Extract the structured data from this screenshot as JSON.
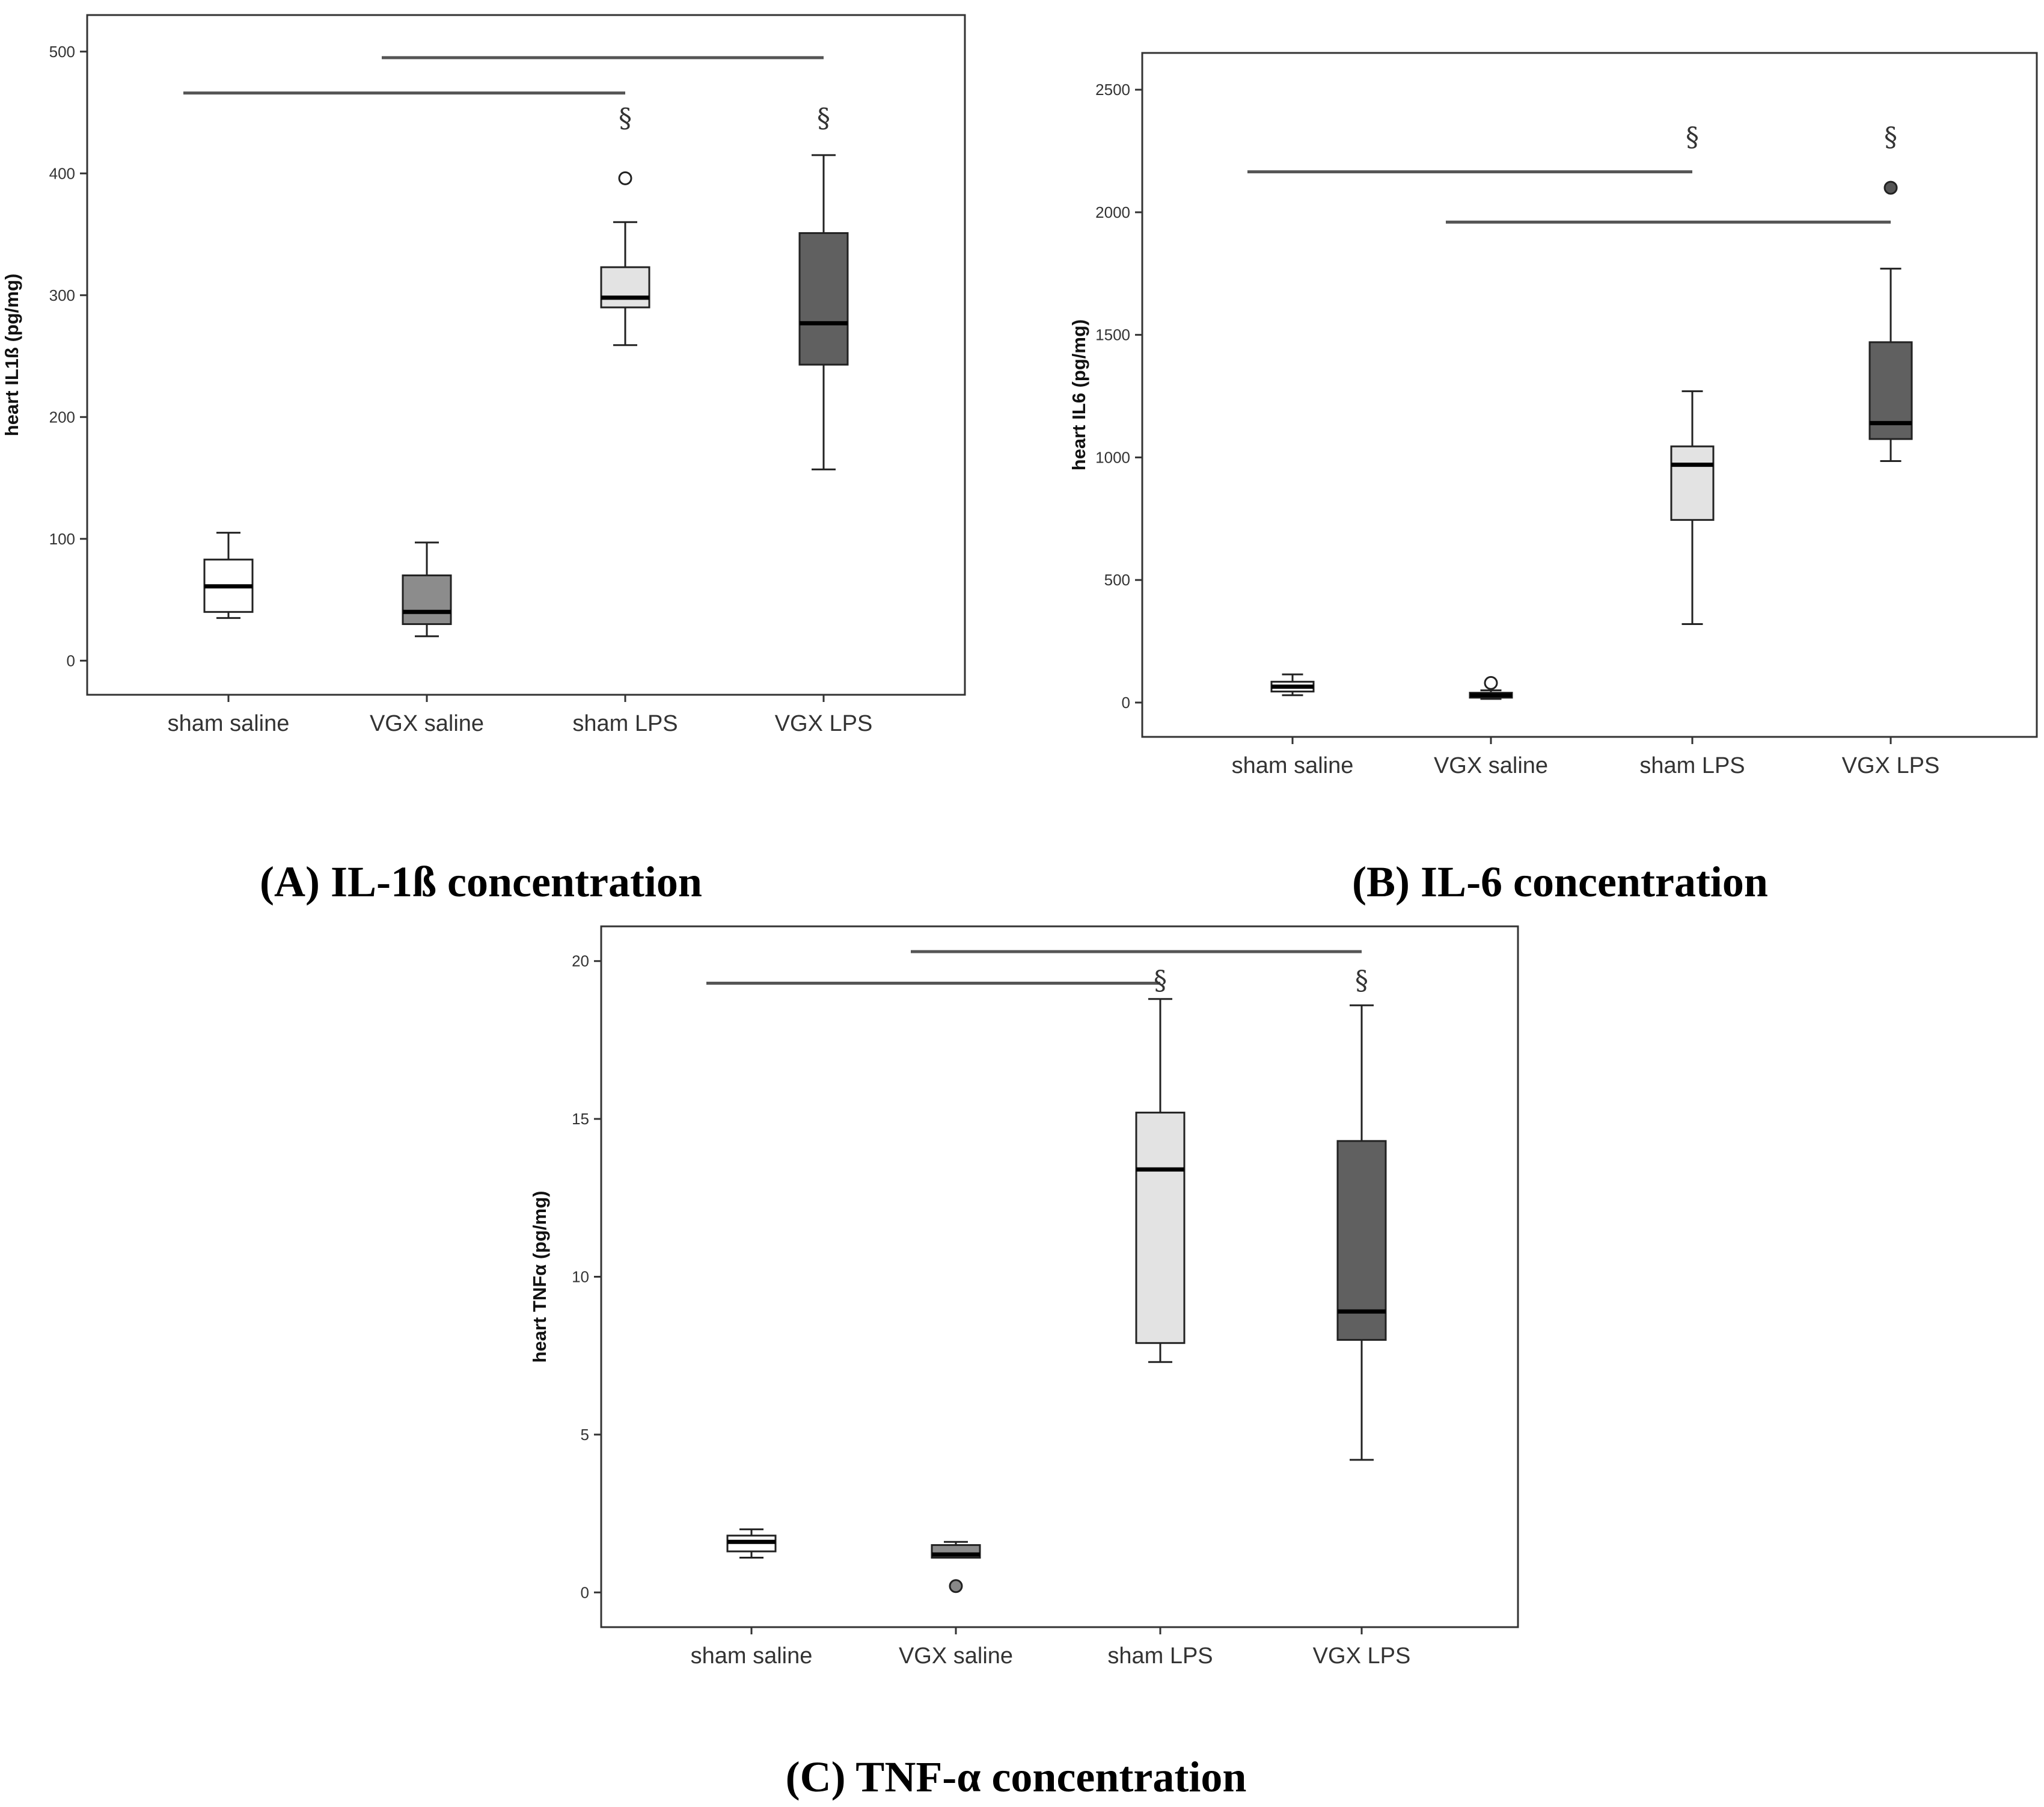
{
  "colors": {
    "sham saline": "#ffffff",
    "VGX saline": "#8c8c8c",
    "sham LPS": "#e3e3e3",
    "VGX LPS": "#606060"
  },
  "chart_data": [
    {
      "id": "A",
      "type": "box",
      "caption_letter": "A",
      "caption_text": "IL-1ß concentration",
      "ylabel": "heart IL1ß (pg/mg)",
      "ylim": [
        -28,
        530
      ],
      "yticks": [
        0,
        100,
        200,
        300,
        400,
        500
      ],
      "categories": [
        "sham saline",
        "VGX saline",
        "sham LPS",
        "VGX LPS"
      ],
      "boxes": [
        {
          "min": 35,
          "q1": 40,
          "median": 61,
          "q3": 83,
          "max": 105,
          "outliers": []
        },
        {
          "min": 20,
          "q1": 30,
          "median": 40,
          "q3": 70,
          "max": 97,
          "outliers": []
        },
        {
          "min": 259,
          "q1": 290,
          "median": 298,
          "q3": 323,
          "max": 360,
          "outliers": [
            {
              "value": 396,
              "fill": "#ffffff"
            }
          ]
        },
        {
          "min": 157,
          "q1": 243,
          "median": 277,
          "q3": 351,
          "max": 415,
          "outliers": []
        }
      ],
      "significance_lines": [
        {
          "from": "sham saline",
          "to": "sham LPS",
          "y": 466
        },
        {
          "from": "VGX saline",
          "to": "VGX LPS",
          "y": 495
        }
      ],
      "markers": [
        {
          "category": "sham LPS",
          "y": 438,
          "text": "§"
        },
        {
          "category": "VGX LPS",
          "y": 438,
          "text": "§"
        }
      ]
    },
    {
      "id": "B",
      "type": "box",
      "caption_letter": "B",
      "caption_text": "IL-6 concentration",
      "ylabel": "heart IL6 (pg/mg)",
      "ylim": [
        -140,
        2650
      ],
      "yticks": [
        0,
        500,
        1000,
        1500,
        2000,
        2500
      ],
      "categories": [
        "sham saline",
        "VGX saline",
        "sham LPS",
        "VGX LPS"
      ],
      "boxes": [
        {
          "min": 30,
          "q1": 45,
          "median": 65,
          "q3": 85,
          "max": 115,
          "outliers": []
        },
        {
          "min": 15,
          "q1": 20,
          "median": 30,
          "q3": 40,
          "max": 50,
          "outliers": [
            {
              "value": 80,
              "fill": "#ffffff"
            }
          ]
        },
        {
          "min": 320,
          "q1": 745,
          "median": 970,
          "q3": 1045,
          "max": 1270,
          "outliers": []
        },
        {
          "min": 985,
          "q1": 1075,
          "median": 1140,
          "q3": 1470,
          "max": 1770,
          "outliers": [
            {
              "value": 2100,
              "fill": "#555555"
            }
          ]
        }
      ],
      "significance_lines": [
        {
          "from": "sham saline",
          "to": "sham LPS",
          "y": 2165
        },
        {
          "from": "VGX saline",
          "to": "VGX LPS",
          "y": 1960
        }
      ],
      "markers": [
        {
          "category": "sham LPS",
          "y": 2270,
          "text": "§"
        },
        {
          "category": "VGX LPS",
          "y": 2270,
          "text": "§"
        }
      ]
    },
    {
      "id": "C",
      "type": "box",
      "caption_letter": "C",
      "caption_text": "TNF-α concentration",
      "ylabel": "heart TNFα (pg/mg)",
      "ylim": [
        -1.1,
        21.1
      ],
      "yticks": [
        0,
        5,
        10,
        15,
        20
      ],
      "categories": [
        "sham saline",
        "VGX saline",
        "sham LPS",
        "VGX LPS"
      ],
      "boxes": [
        {
          "min": 1.1,
          "q1": 1.3,
          "median": 1.6,
          "q3": 1.8,
          "max": 2.0,
          "outliers": []
        },
        {
          "min": 1.1,
          "q1": 1.1,
          "median": 1.2,
          "q3": 1.5,
          "max": 1.6,
          "outliers": [
            {
              "value": 0.2,
              "fill": "#888888"
            }
          ]
        },
        {
          "min": 7.3,
          "q1": 7.9,
          "median": 13.4,
          "q3": 15.2,
          "max": 18.8,
          "outliers": []
        },
        {
          "min": 4.2,
          "q1": 8.0,
          "median": 8.9,
          "q3": 14.3,
          "max": 18.6,
          "outliers": []
        }
      ],
      "significance_lines": [
        {
          "from": "sham saline",
          "to": "sham LPS",
          "y": 19.3
        },
        {
          "from": "VGX saline",
          "to": "VGX LPS",
          "y": 20.3
        }
      ],
      "markers": [
        {
          "category": "sham LPS",
          "y": 19.1,
          "text": "§"
        },
        {
          "category": "VGX LPS",
          "y": 19.1,
          "text": "§"
        }
      ]
    }
  ]
}
